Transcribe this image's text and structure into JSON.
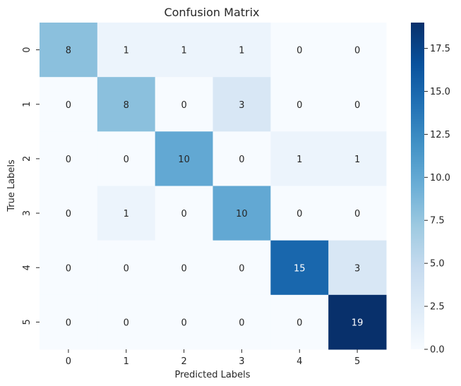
{
  "chart_data": {
    "type": "heatmap",
    "title": "Confusion Matrix",
    "xlabel": "Predicted Labels",
    "ylabel": "True Labels",
    "x_categories": [
      "0",
      "1",
      "2",
      "3",
      "4",
      "5"
    ],
    "y_categories": [
      "0",
      "1",
      "2",
      "3",
      "4",
      "5"
    ],
    "values": [
      [
        8,
        1,
        1,
        1,
        0,
        0
      ],
      [
        0,
        8,
        0,
        3,
        0,
        0
      ],
      [
        0,
        0,
        10,
        0,
        1,
        1
      ],
      [
        0,
        1,
        0,
        10,
        0,
        0
      ],
      [
        0,
        0,
        0,
        0,
        15,
        3
      ],
      [
        0,
        0,
        0,
        0,
        0,
        19
      ]
    ],
    "colormap": "Blues",
    "colorbar": {
      "range": [
        0,
        19
      ],
      "ticks": [
        "0.0",
        "2.5",
        "5.0",
        "7.5",
        "10.0",
        "12.5",
        "15.0",
        "17.5"
      ]
    },
    "annotated": true,
    "grid": false
  }
}
